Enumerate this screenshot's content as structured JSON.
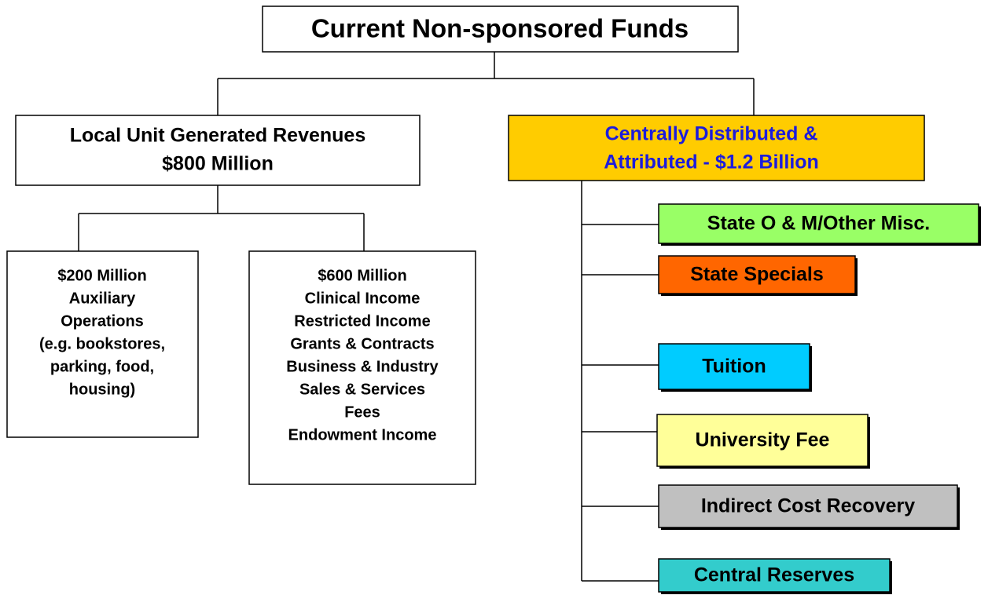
{
  "root": {
    "label": "Current Non-sponsored Funds"
  },
  "local": {
    "lines": [
      "Local Unit Generated Revenues",
      "$800 Million"
    ]
  },
  "central": {
    "lines": [
      "Centrally Distributed &",
      "Attributed - $1.2 Billion"
    ]
  },
  "auxiliary": {
    "lines": [
      "$200 Million",
      "Auxiliary",
      "Operations",
      "(e.g. bookstores,",
      "parking, food,",
      "housing)"
    ]
  },
  "other": {
    "lines": [
      "$600 Million",
      "Clinical Income",
      "Restricted Income",
      "Grants & Contracts",
      "Business & Industry",
      "Sales & Services",
      "Fees",
      "Endowment Income"
    ]
  },
  "sources": [
    {
      "label": "State O & M/Other Misc."
    },
    {
      "label": "State Specials"
    },
    {
      "label": "Tuition"
    },
    {
      "label": "University Fee"
    },
    {
      "label": "Indirect Cost Recovery"
    },
    {
      "label": "Central Reserves"
    }
  ]
}
